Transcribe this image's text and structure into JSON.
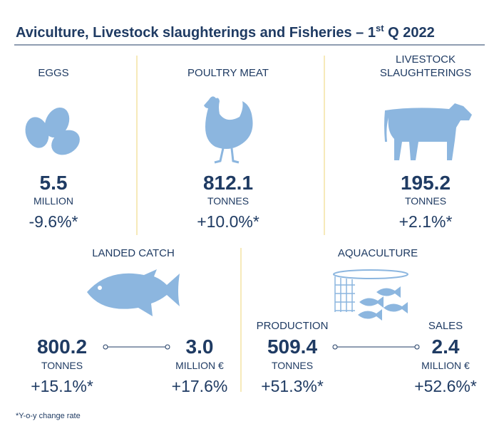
{
  "title": {
    "main": "Aviculture, Livestock slaughterings and Fisheries – 1",
    "superscript": "st",
    "suffix": " Q 2022"
  },
  "eggs": {
    "label": "EGGS",
    "value": "5.5",
    "unit": "MILLION",
    "change": "-9.6%*"
  },
  "poultry_meat": {
    "label": "POULTRY MEAT",
    "value": "812.1",
    "unit": "TONNES",
    "change": "+10.0%*"
  },
  "livestock": {
    "label": [
      "LIVESTOCK",
      "SLAUGHTERINGS"
    ],
    "value": "195.2",
    "unit": "TONNES",
    "change": "+2.1%*"
  },
  "landed_catch": {
    "label": "LANDED CATCH",
    "quantity": {
      "value": "800.2",
      "unit": "TONNES",
      "change": "+15.1%*"
    },
    "amount": {
      "value": "3.0",
      "unit": "MILLION €",
      "change": "+17.6%"
    }
  },
  "aquaculture": {
    "label": "AQUACULTURE",
    "production": {
      "label": "PRODUCTION",
      "value": "509.4",
      "unit": "TONNES",
      "change": "+51.3%*"
    },
    "sales": {
      "label": "SALES",
      "value": "2.4",
      "unit": "MILLION €",
      "change": "+52.6%*"
    }
  },
  "footnote": "*Y-o-y change rate"
}
